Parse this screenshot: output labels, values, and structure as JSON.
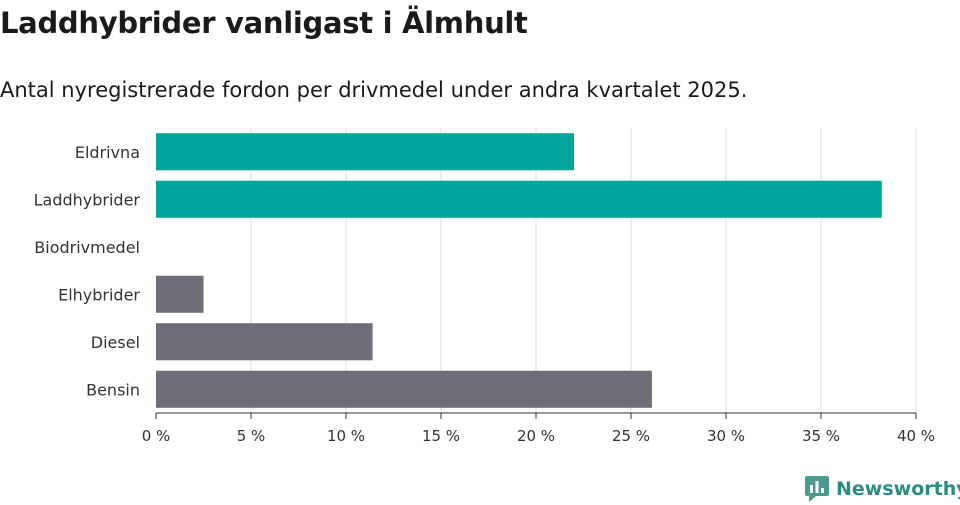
{
  "title": "Laddhybrider vanligast i Älmhult",
  "subtitle": "Antal nyregistrerade fordon per drivmedel under andra kvartalet 2025.",
  "brand": {
    "name": "Newsworthy",
    "icon": "newsworthy-logo-icon",
    "color": "#4c9a8f"
  },
  "colors": {
    "highlight": "#00a69c",
    "other": "#6e6d78",
    "grid": "#dddddd"
  },
  "chart_data": {
    "type": "bar",
    "orientation": "horizontal",
    "categories": [
      "Eldrivna",
      "Laddhybrider",
      "Biodrivmedel",
      "Elhybrider",
      "Diesel",
      "Bensin"
    ],
    "values": [
      22.0,
      38.2,
      0,
      2.5,
      11.4,
      26.1
    ],
    "bar_colors": [
      "#00a69c",
      "#00a69c",
      "#00a69c",
      "#6e6d78",
      "#6e6d78",
      "#6e6d78"
    ],
    "xlim": [
      0,
      40
    ],
    "xticks": [
      0,
      5,
      10,
      15,
      20,
      25,
      30,
      35,
      40
    ],
    "tick_labels": [
      "0 %",
      "5 %",
      "10 %",
      "15 %",
      "20 %",
      "25 %",
      "30 %",
      "35 %",
      "40 %"
    ],
    "xlabel": "",
    "ylabel": "",
    "grid": "vertical",
    "legend": "none"
  }
}
